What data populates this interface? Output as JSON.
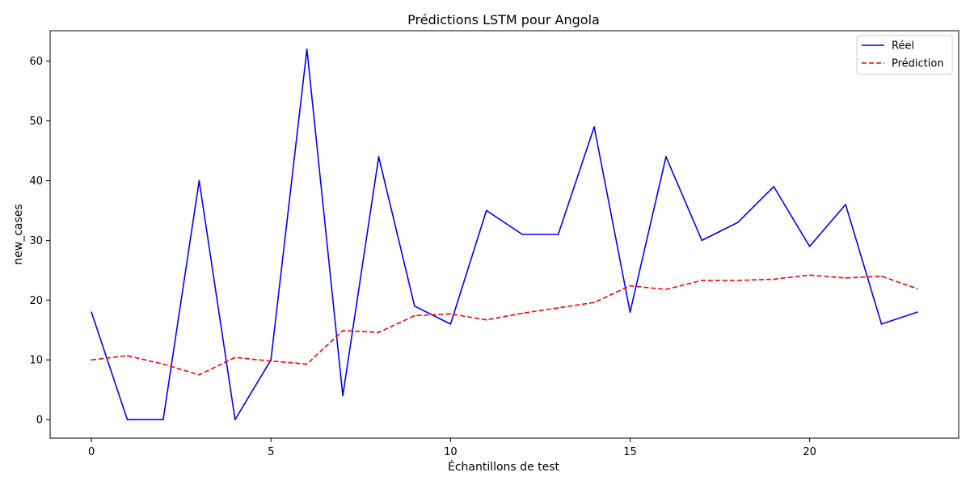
{
  "chart_data": {
    "type": "line",
    "title": "Prédictions LSTM pour Angola",
    "xlabel": "Échantillons de test",
    "ylabel": "new_cases",
    "x": [
      0,
      1,
      2,
      3,
      4,
      5,
      6,
      7,
      8,
      9,
      10,
      11,
      12,
      13,
      14,
      15,
      16,
      17,
      18,
      19,
      20,
      21,
      22,
      23
    ],
    "xlim": [
      -1.15,
      24.15
    ],
    "ylim": [
      -3.1,
      65.1
    ],
    "xticks": [
      0,
      5,
      10,
      15,
      20
    ],
    "yticks": [
      0,
      10,
      20,
      30,
      40,
      50,
      60
    ],
    "grid": false,
    "legend_position": "top-right",
    "series": [
      {
        "name": "Réel",
        "color": "#0000ff",
        "style": "solid",
        "values": [
          18,
          0,
          0,
          40,
          0,
          10,
          62,
          4,
          44,
          19,
          16,
          35,
          31,
          31,
          49,
          18,
          44,
          30,
          33,
          39,
          29,
          36,
          16,
          18
        ]
      },
      {
        "name": "Prédiction",
        "color": "#ff0000",
        "style": "dashed",
        "values": [
          10.0,
          10.7,
          9.3,
          7.5,
          10.4,
          9.8,
          9.3,
          14.9,
          14.6,
          17.4,
          17.7,
          16.7,
          17.8,
          18.7,
          19.6,
          22.4,
          21.8,
          23.3,
          23.3,
          23.5,
          24.2,
          23.7,
          24.0,
          21.9
        ]
      }
    ]
  }
}
